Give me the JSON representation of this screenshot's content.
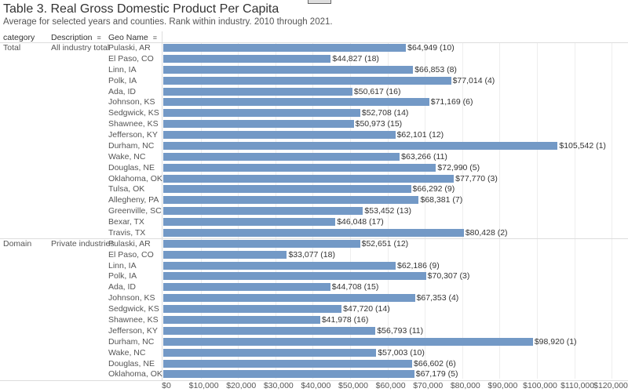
{
  "header": {
    "title": "Table 3. Real Gross Domestic Product Per Capita",
    "subtitle": "Average for selected years and counties. Rank within industry. 2010 through 2021.",
    "columns": [
      "category",
      "Description",
      "Geo Name"
    ]
  },
  "colors": {
    "bar": "#7399c6"
  },
  "chart_data": {
    "type": "bar",
    "orientation": "horizontal",
    "xlim": [
      0,
      120000
    ],
    "x_ticks": [
      "$0",
      "$10,000",
      "$20,000",
      "$30,000",
      "$40,000",
      "$50,000",
      "$60,000",
      "$70,000",
      "$80,000",
      "$90,000",
      "$100,000",
      "$110,000",
      "$120,000"
    ],
    "grid": true,
    "groups": [
      {
        "category": "Total",
        "description": "All industry total",
        "rows": [
          {
            "geo": "Pulaski, AR",
            "value": 64949,
            "label": "$64,949 (10)"
          },
          {
            "geo": "El Paso, CO",
            "value": 44827,
            "label": "$44,827 (18)"
          },
          {
            "geo": "Linn, IA",
            "value": 66853,
            "label": "$66,853 (8)"
          },
          {
            "geo": "Polk, IA",
            "value": 77014,
            "label": "$77,014 (4)"
          },
          {
            "geo": "Ada, ID",
            "value": 50617,
            "label": "$50,617 (16)"
          },
          {
            "geo": "Johnson, KS",
            "value": 71169,
            "label": "$71,169 (6)"
          },
          {
            "geo": "Sedgwick, KS",
            "value": 52708,
            "label": "$52,708 (14)"
          },
          {
            "geo": "Shawnee, KS",
            "value": 50973,
            "label": "$50,973 (15)"
          },
          {
            "geo": "Jefferson, KY",
            "value": 62101,
            "label": "$62,101 (12)"
          },
          {
            "geo": "Durham, NC",
            "value": 105542,
            "label": "$105,542 (1)"
          },
          {
            "geo": "Wake, NC",
            "value": 63266,
            "label": "$63,266 (11)"
          },
          {
            "geo": "Douglas, NE",
            "value": 72990,
            "label": "$72,990 (5)"
          },
          {
            "geo": "Oklahoma, OK",
            "value": 77770,
            "label": "$77,770 (3)"
          },
          {
            "geo": "Tulsa, OK",
            "value": 66292,
            "label": "$66,292 (9)"
          },
          {
            "geo": "Allegheny, PA",
            "value": 68381,
            "label": "$68,381 (7)"
          },
          {
            "geo": "Greenville, SC",
            "value": 53452,
            "label": "$53,452 (13)"
          },
          {
            "geo": "Bexar, TX",
            "value": 46048,
            "label": "$46,048 (17)"
          },
          {
            "geo": "Travis, TX",
            "value": 80428,
            "label": "$80,428 (2)"
          }
        ]
      },
      {
        "category": "Domain",
        "description": "Private industries",
        "rows": [
          {
            "geo": "Pulaski, AR",
            "value": 52651,
            "label": "$52,651 (12)"
          },
          {
            "geo": "El Paso, CO",
            "value": 33077,
            "label": "$33,077 (18)"
          },
          {
            "geo": "Linn, IA",
            "value": 62186,
            "label": "$62,186 (9)"
          },
          {
            "geo": "Polk, IA",
            "value": 70307,
            "label": "$70,307 (3)"
          },
          {
            "geo": "Ada, ID",
            "value": 44708,
            "label": "$44,708 (15)"
          },
          {
            "geo": "Johnson, KS",
            "value": 67353,
            "label": "$67,353 (4)"
          },
          {
            "geo": "Sedgwick, KS",
            "value": 47720,
            "label": "$47,720 (14)"
          },
          {
            "geo": "Shawnee, KS",
            "value": 41978,
            "label": "$41,978 (16)"
          },
          {
            "geo": "Jefferson, KY",
            "value": 56793,
            "label": "$56,793 (11)"
          },
          {
            "geo": "Durham, NC",
            "value": 98920,
            "label": "$98,920 (1)"
          },
          {
            "geo": "Wake, NC",
            "value": 57003,
            "label": "$57,003 (10)"
          },
          {
            "geo": "Douglas, NE",
            "value": 66602,
            "label": "$66,602 (6)"
          },
          {
            "geo": "Oklahoma, OK",
            "value": 67179,
            "label": "$67,179 (5)"
          }
        ]
      }
    ]
  }
}
